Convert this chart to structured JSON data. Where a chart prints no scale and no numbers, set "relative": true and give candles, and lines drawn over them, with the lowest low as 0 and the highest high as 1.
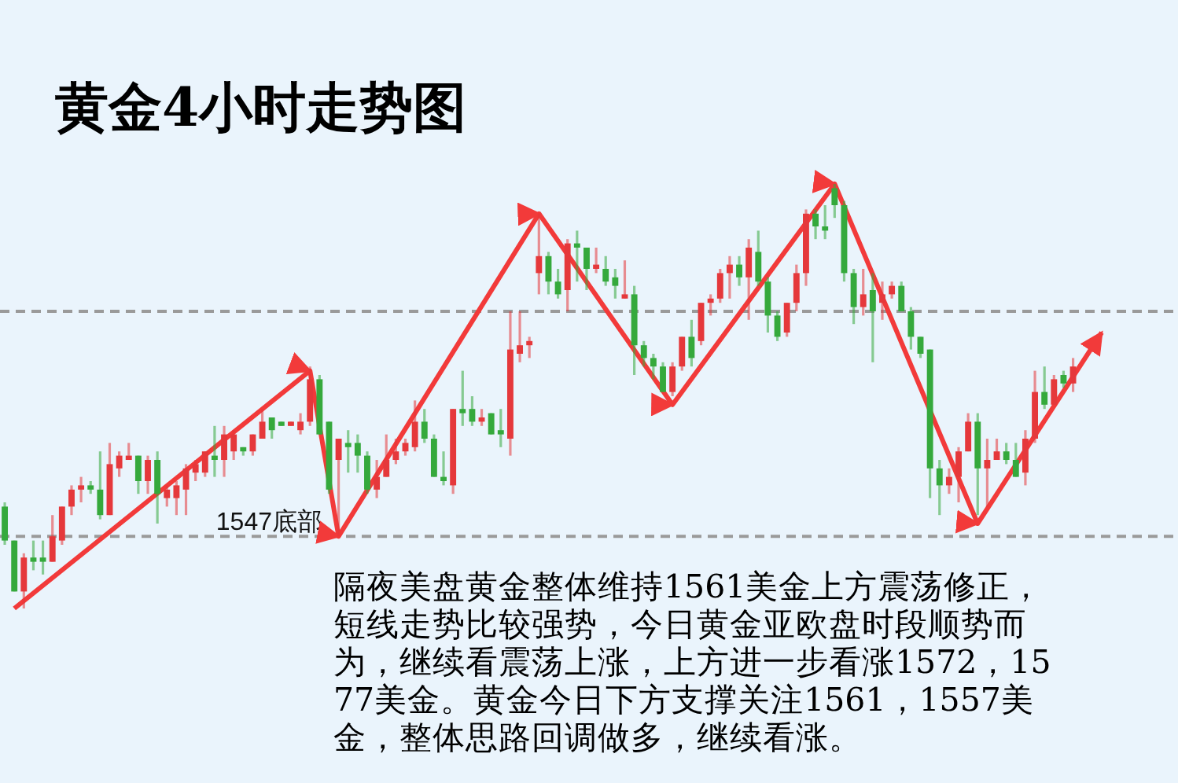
{
  "chart_data": {
    "type": "candlestick",
    "title": "黄金4小时走势图",
    "relative": true,
    "categories": [
      null,
      null,
      null,
      null,
      null,
      null,
      null,
      null,
      null,
      null,
      null,
      null,
      null,
      null,
      null,
      null,
      null,
      null,
      null,
      null,
      null,
      null,
      null,
      null,
      null,
      null,
      null,
      null,
      null,
      null,
      null,
      null,
      null,
      null,
      null,
      null,
      null,
      null,
      null,
      null,
      null,
      null,
      null,
      null,
      null,
      null,
      null,
      null,
      null,
      null,
      null,
      null,
      null,
      null,
      null,
      null,
      null,
      null,
      null,
      null,
      null,
      null,
      null,
      null,
      null,
      null,
      null,
      null,
      null,
      null,
      null,
      null,
      null,
      null,
      null,
      null,
      null,
      null,
      null,
      null,
      null,
      null,
      null,
      null,
      null,
      null,
      null,
      null,
      null,
      null,
      null,
      null,
      null,
      null,
      null,
      null,
      null,
      null,
      null,
      null,
      null,
      null,
      null,
      null,
      null,
      null,
      null,
      null,
      null,
      null,
      null,
      null,
      null,
      null,
      null,
      null
    ],
    "colors": [
      "#35a93c",
      "#35a93c",
      "#e5383b",
      "#35a93c",
      "#35a93c",
      "#e5383b",
      "#e5383b",
      "#e5383b",
      "#e5383b",
      "#35a93c",
      "#35a93c",
      "#e5383b",
      "#e5383b",
      "#e5383b",
      "#35a93c",
      "#e5383b",
      "#35a93c",
      "#e5383b",
      "#e5383b",
      "#e5383b",
      "#e5383b",
      "#e5383b",
      "#35a93c",
      "#e5383b",
      "#e5383b",
      "#35a93c",
      "#e5383b",
      "#e5383b",
      "#35a93c",
      "#35a93c",
      "#e5383b",
      "#e5383b",
      "#e5383b",
      "#35a93c",
      "#35a93c",
      "#e5383b",
      "#35a93c",
      "#35a93c",
      "#35a93c",
      "#e5383b",
      "#e5383b",
      "#e5383b",
      "#e5383b",
      "#e5383b",
      "#35a93c",
      "#35a93c",
      "#35a93c",
      "#e5383b",
      "#35a93c",
      "#35a93c",
      "#e5383b",
      "#35a93c",
      "#35a93c",
      "#e5383b",
      "#e5383b",
      "#e5383b",
      "#e5383b",
      "#35a93c",
      "#35a93c",
      "#e5383b",
      "#35a93c",
      "#35a93c",
      "#e5383b",
      "#35a93c",
      "#35a93c",
      "#e5383b",
      "#35a93c",
      "#35a93c",
      "#35a93c",
      "#35a93c",
      "#e5383b",
      "#e5383b",
      "#35a93c",
      "#e5383b",
      "#e5383b",
      "#e5383b",
      "#e5383b",
      "#35a93c",
      "#e5383b",
      "#35a93c",
      "#35a93c",
      "#35a93c",
      "#e5383b",
      "#e5383b",
      "#e5383b",
      "#35a93c",
      "#35a93c",
      "#35a93c",
      "#35a93c",
      "#35a93c",
      "#e5383b",
      "#35a93c",
      "#e5383b",
      "#e5383b",
      "#35a93c",
      "#35a93c",
      "#35a93c",
      "#35a93c",
      "#35a93c",
      "#e5383b",
      "#e5383b",
      "#e5383b",
      "#35a93c",
      "#e5383b",
      "#e5383b",
      "#35a93c",
      "#35a93c",
      "#e5383b",
      "#e5383b",
      "#35a93c",
      "#e5383b",
      "#35a93c",
      "#e5383b",
      null,
      null,
      null
    ],
    "ohlc": [
      [
        0.24,
        0.25,
        0.15,
        0.16
      ],
      [
        0.16,
        0.16,
        0.04,
        0.04
      ],
      [
        0.04,
        0.13,
        0,
        0.12
      ],
      [
        0.12,
        0.16,
        0.09,
        0.11
      ],
      [
        0.12,
        0.16,
        0.08,
        0.11
      ],
      [
        0.11,
        0.22,
        0.11,
        0.17
      ],
      [
        0.16,
        0.24,
        0.15,
        0.24
      ],
      [
        0.24,
        0.29,
        0.22,
        0.28
      ],
      [
        0.28,
        0.31,
        0.25,
        0.29
      ],
      [
        0.29,
        0.3,
        0.27,
        0.28
      ],
      [
        0.28,
        0.37,
        0.21,
        0.22
      ],
      [
        0.22,
        0.39,
        0.22,
        0.34
      ],
      [
        0.33,
        0.37,
        0.31,
        0.36
      ],
      [
        0.35,
        0.39,
        0.35,
        0.36
      ],
      [
        0.36,
        0.36,
        0.27,
        0.3
      ],
      [
        0.3,
        0.36,
        0.27,
        0.35
      ],
      [
        0.35,
        0.37,
        0.2,
        0.27
      ],
      [
        0.26,
        0.29,
        0.24,
        0.28
      ],
      [
        0.26,
        0.3,
        0.22,
        0.29
      ],
      [
        0.28,
        0.34,
        0.22,
        0.33
      ],
      [
        0.32,
        0.35,
        0.3,
        0.34
      ],
      [
        0.32,
        0.37,
        0.31,
        0.37
      ],
      [
        0.36,
        0.43,
        0.31,
        0.35
      ],
      [
        0.35,
        0.43,
        0.31,
        0.41
      ],
      [
        0.37,
        0.42,
        0.35,
        0.41
      ],
      [
        0.38,
        0.38,
        0.36,
        0.37
      ],
      [
        0.37,
        0.41,
        0.36,
        0.41
      ],
      [
        0.4,
        0.47,
        0.4,
        0.44
      ],
      [
        0.45,
        0.45,
        0.4,
        0.42
      ],
      [
        0.44,
        0.44,
        0.43,
        0.43
      ],
      [
        0.43,
        0.44,
        0.43,
        0.44
      ],
      [
        0.42,
        0.46,
        0.41,
        0.44
      ],
      [
        0.44,
        0.57,
        0.43,
        0.54
      ],
      [
        0.54,
        0.55,
        0.41,
        0.41
      ],
      [
        0.44,
        0.44,
        0.27,
        0.28
      ],
      [
        0.35,
        0.4,
        0.17,
        0.4
      ],
      [
        0.39,
        0.42,
        0.32,
        0.38
      ],
      [
        0.39,
        0.41,
        0.32,
        0.36
      ],
      [
        0.36,
        0.37,
        0.27,
        0.28
      ],
      [
        0.28,
        0.35,
        0.26,
        0.31
      ],
      [
        0.31,
        0.41,
        0.31,
        0.35
      ],
      [
        0.35,
        0.4,
        0.34,
        0.37
      ],
      [
        0.37,
        0.4,
        0.36,
        0.39
      ],
      [
        0.38,
        0.49,
        0.37,
        0.44
      ],
      [
        0.44,
        0.47,
        0.39,
        0.4
      ],
      [
        0.4,
        0.41,
        0.31,
        0.31
      ],
      [
        0.31,
        0.37,
        0.29,
        0.3
      ],
      [
        0.29,
        0.47,
        0.27,
        0.47
      ],
      [
        0.47,
        0.56,
        0.43,
        0.46
      ],
      [
        0.47,
        0.5,
        0.43,
        0.44
      ],
      [
        0.44,
        0.47,
        0.43,
        0.45
      ],
      [
        0.46,
        0.46,
        0.41,
        0.41
      ],
      [
        0.42,
        0.47,
        0.38,
        0.41
      ],
      [
        0.4,
        0.7,
        0.36,
        0.61
      ],
      [
        0.6,
        0.7,
        0.58,
        0.62
      ],
      [
        0.62,
        0.64,
        0.59,
        0.63
      ],
      [
        0.79,
        0.93,
        0.74,
        0.83
      ],
      [
        0.83,
        0.84,
        0.74,
        0.77
      ],
      [
        0.77,
        0.8,
        0.73,
        0.74
      ],
      [
        0.75,
        0.87,
        0.7,
        0.86
      ],
      [
        0.86,
        0.89,
        0.77,
        0.85
      ],
      [
        0.85,
        0.85,
        0.75,
        0.8
      ],
      [
        0.8,
        0.85,
        0.79,
        0.81
      ],
      [
        0.8,
        0.83,
        0.76,
        0.77
      ],
      [
        0.78,
        0.8,
        0.73,
        0.76
      ],
      [
        0.73,
        0.82,
        0.73,
        0.74
      ],
      [
        0.74,
        0.76,
        0.55,
        0.62
      ],
      [
        0.62,
        0.63,
        0.57,
        0.59
      ],
      [
        0.59,
        0.6,
        0.54,
        0.57
      ],
      [
        0.57,
        0.58,
        0.51,
        0.51
      ],
      [
        0.51,
        0.58,
        0.5,
        0.57
      ],
      [
        0.57,
        0.64,
        0.56,
        0.64
      ],
      [
        0.64,
        0.68,
        0.57,
        0.59
      ],
      [
        0.63,
        0.72,
        0.62,
        0.72
      ],
      [
        0.72,
        0.74,
        0.69,
        0.73
      ],
      [
        0.73,
        0.8,
        0.72,
        0.79
      ],
      [
        0.79,
        0.83,
        0.73,
        0.81
      ],
      [
        0.81,
        0.83,
        0.76,
        0.78
      ],
      [
        0.78,
        0.87,
        0.68,
        0.85
      ],
      [
        0.84,
        0.89,
        0.76,
        0.77
      ],
      [
        0.77,
        0.78,
        0.65,
        0.69
      ],
      [
        0.69,
        0.7,
        0.63,
        0.64
      ],
      [
        0.65,
        0.72,
        0.64,
        0.72
      ],
      [
        0.72,
        0.81,
        0.7,
        0.79
      ],
      [
        0.79,
        0.94,
        0.76,
        0.93
      ],
      [
        0.93,
        0.94,
        0.87,
        0.9
      ],
      [
        0.9,
        0.95,
        0.87,
        0.89
      ],
      [
        0.99,
        1,
        0.92,
        0.95
      ],
      [
        0.95,
        0.96,
        0.77,
        0.79
      ],
      [
        0.79,
        0.8,
        0.67,
        0.71
      ],
      [
        0.71,
        0.8,
        0.69,
        0.74
      ],
      [
        0.75,
        0.79,
        0.58,
        0.7
      ],
      [
        0.72,
        0.77,
        0.68,
        0.74
      ],
      [
        0.74,
        0.77,
        0.73,
        0.76
      ],
      [
        0.76,
        0.77,
        0.7,
        0.7
      ],
      [
        0.7,
        0.71,
        0.61,
        0.64
      ],
      [
        0.64,
        0.64,
        0.59,
        0.6
      ],
      [
        0.61,
        0.61,
        0.26,
        0.33
      ],
      [
        0.33,
        0.35,
        0.22,
        0.29
      ],
      [
        0.29,
        0.33,
        0.27,
        0.31
      ],
      [
        0.31,
        0.38,
        0.25,
        0.37
      ],
      [
        0.37,
        0.46,
        0.37,
        0.44
      ],
      [
        0.44,
        0.46,
        0.22,
        0.33
      ],
      [
        0.33,
        0.4,
        0.24,
        0.35
      ],
      [
        0.35,
        0.4,
        0.35,
        0.37
      ],
      [
        0.37,
        0.39,
        0.34,
        0.35
      ],
      [
        0.35,
        0.39,
        0.31,
        0.31
      ],
      [
        0.32,
        0.42,
        0.29,
        0.4
      ],
      [
        0.4,
        0.56,
        0.39,
        0.51
      ],
      [
        0.51,
        0.57,
        0.47,
        0.48
      ],
      [
        0.48,
        0.55,
        0.48,
        0.54
      ],
      [
        0.55,
        0.56,
        0.52,
        0.53
      ],
      [
        0.53,
        0.59,
        0.51,
        0.57
      ],
      null,
      null,
      null
    ],
    "series": [
      {
        "type": "line",
        "color": "#f23a3a",
        "values": [
          null,
          0,
          null,
          null,
          null,
          null,
          null,
          null,
          null,
          null,
          null,
          null,
          null,
          null,
          null,
          null,
          null,
          null,
          null,
          null,
          null,
          null,
          null,
          null,
          null,
          null,
          null,
          null,
          null,
          null,
          null,
          null,
          0.56,
          null,
          null,
          0.17,
          null,
          null,
          null,
          null,
          null,
          null,
          null,
          null,
          null,
          null,
          null,
          null,
          null,
          null,
          null,
          null,
          null,
          null,
          null,
          null,
          0.93,
          null,
          null,
          null,
          null,
          null,
          null,
          null,
          null,
          null,
          null,
          null,
          null,
          null,
          0.48,
          null,
          null,
          null,
          null,
          null,
          null,
          null,
          null,
          null,
          null,
          null,
          null,
          null,
          null,
          null,
          null,
          1,
          null,
          null,
          null,
          null,
          null,
          null,
          null,
          null,
          null,
          null,
          null,
          null,
          null,
          null,
          0.2,
          null,
          null,
          null,
          null,
          null,
          null,
          null,
          null,
          null,
          null,
          null,
          null,
          0.65
        ]
      }
    ],
    "ref_lines": [
      {
        "axis": "y",
        "value": 0.17,
        "label": "1547底部",
        "color": "#9a9a9a",
        "line_style": "dashed"
      },
      {
        "axis": "y",
        "value": 0.7,
        "color": "#9a9a9a",
        "line_style": "dashed"
      }
    ],
    "annotations": [
      "隔夜美盘黄金整体维持1561美金上方震荡修正，短线走势比较强势，今日黄金亚欧盘时段顺势而为，继续看震荡上涨，上方进一步看涨1572，1577美金。黄金今日下方支撑关注1561，1557美金，整体思路回调做多，继续看涨。"
    ]
  }
}
